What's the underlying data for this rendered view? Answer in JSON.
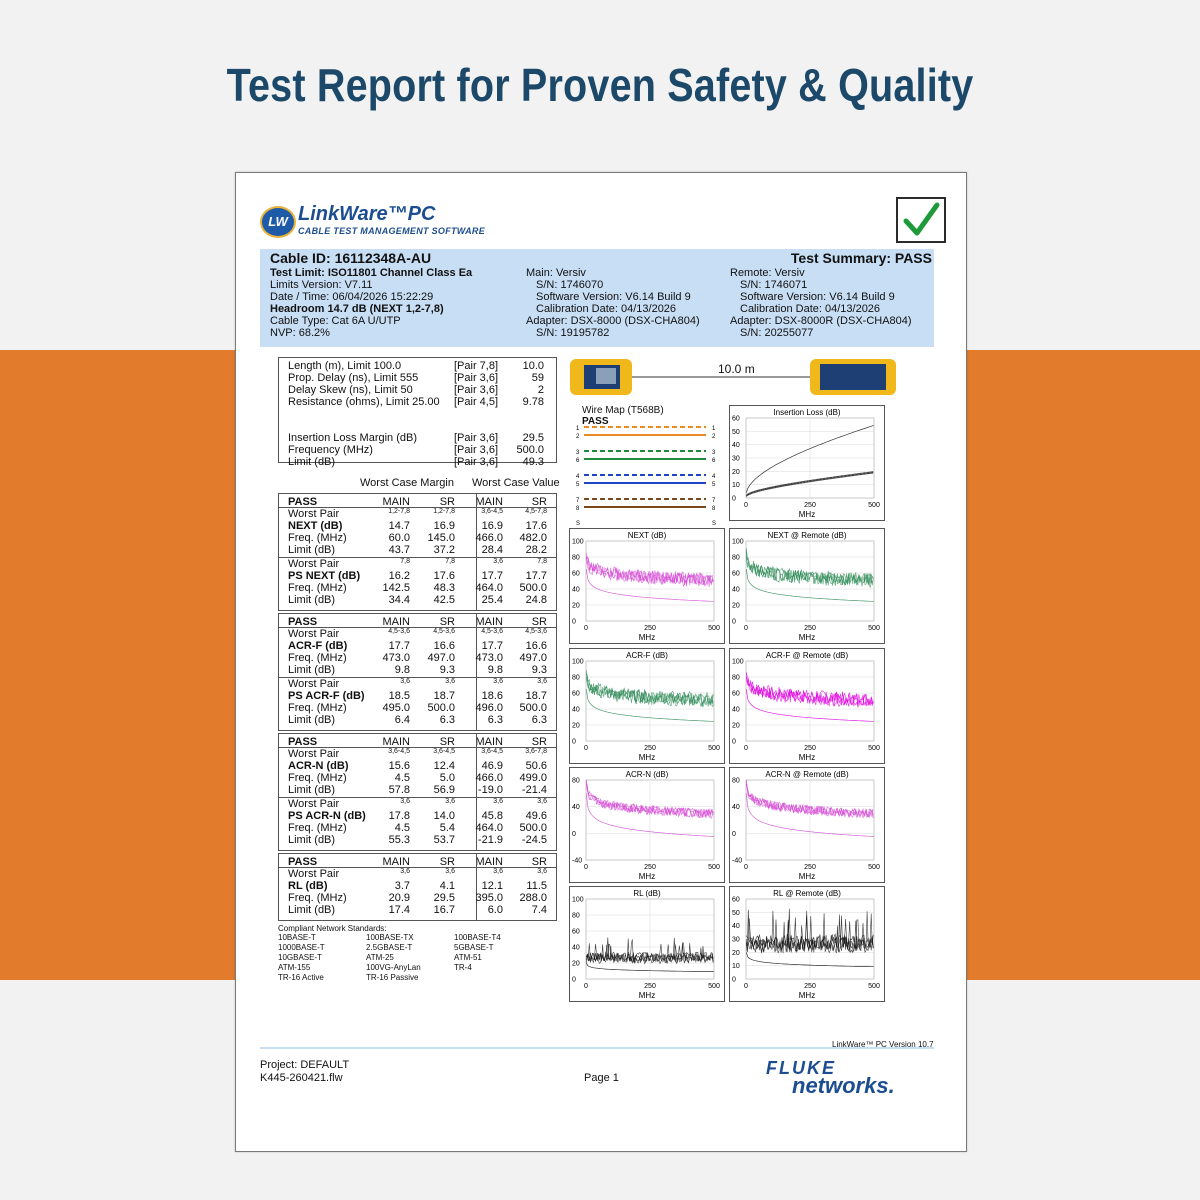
{
  "headline": "Test Report for Proven Safety & Quality",
  "logo": {
    "title": "LinkWare™PC",
    "subtitle": "CABLE TEST MANAGEMENT SOFTWARE",
    "badge": "LW"
  },
  "header": {
    "cable_id": "Cable ID: 16112348A-AU",
    "summary": "Test Summary: PASS",
    "left": [
      "Test Limit: ISO11801 Channel Class Ea",
      "Limits Version: V7.11",
      "Date / Time: 06/04/2026  15:22:29",
      "Headroom 14.7 dB (NEXT 1,2-7,8)",
      "Cable Type: Cat 6A U/UTP",
      "NVP: 68.2%"
    ],
    "mid": [
      "Main: Versiv",
      "S/N: 1746070",
      "Software Version: V6.14 Build 9",
      "Calibration Date: 04/13/2026",
      "Adapter: DSX-8000 (DSX-CHA804)",
      "S/N: 19195782"
    ],
    "right": [
      "Remote: Versiv",
      "S/N: 1746071",
      "Software Version: V6.14 Build 9",
      "Calibration Date: 04/13/2026",
      "Adapter: DSX-8000R (DSX-CHA804)",
      "S/N: 20255077"
    ]
  },
  "metrics": [
    [
      "Length (m), Limit 100.0",
      "[Pair 7,8]",
      "10.0"
    ],
    [
      "Prop. Delay (ns), Limit 555",
      "[Pair 3,6]",
      "59"
    ],
    [
      "Delay Skew (ns), Limit 50",
      "[Pair 3,6]",
      "2"
    ],
    [
      "Resistance (ohms), Limit 25.00",
      "[Pair 4,5]",
      "9.78"
    ],
    [
      "Insertion Loss Margin (dB)",
      "[Pair 3,6]",
      "29.5"
    ],
    [
      "Frequency (MHz)",
      "[Pair 3,6]",
      "500.0"
    ],
    [
      "Limit (dB)",
      "[Pair 3,6]",
      "49.3"
    ]
  ],
  "col_heads": {
    "margin": "Worst Case Margin",
    "value": "Worst Case Value"
  },
  "tables": [
    {
      "head": [
        "PASS",
        "MAIN",
        "SR",
        "MAIN",
        "SR"
      ],
      "groups": [
        {
          "pairs": [
            "1,2-7,8",
            "1,2-7,8",
            "3,6-4,5",
            "4,5-7,8"
          ],
          "rows": [
            [
              "NEXT (dB)",
              "14.7",
              "16.9",
              "16.9",
              "17.6"
            ],
            [
              "Freq. (MHz)",
              "60.0",
              "145.0",
              "466.0",
              "482.0"
            ],
            [
              "Limit (dB)",
              "43.7",
              "37.2",
              "28.4",
              "28.2"
            ]
          ]
        },
        {
          "pairs": [
            "7,8",
            "7,8",
            "3,6",
            "7,8"
          ],
          "rows": [
            [
              "PS NEXT (dB)",
              "16.2",
              "17.6",
              "17.7",
              "17.7"
            ],
            [
              "Freq. (MHz)",
              "142.5",
              "48.3",
              "464.0",
              "500.0"
            ],
            [
              "Limit (dB)",
              "34.4",
              "42.5",
              "25.4",
              "24.8"
            ]
          ]
        }
      ]
    },
    {
      "head": [
        "PASS",
        "MAIN",
        "SR",
        "MAIN",
        "SR"
      ],
      "groups": [
        {
          "pairs": [
            "4,5-3,6",
            "4,5-3,6",
            "4,5-3,6",
            "4,5-3,6"
          ],
          "rows": [
            [
              "ACR-F (dB)",
              "17.7",
              "16.6",
              "17.7",
              "16.6"
            ],
            [
              "Freq. (MHz)",
              "473.0",
              "497.0",
              "473.0",
              "497.0"
            ],
            [
              "Limit (dB)",
              "9.8",
              "9.3",
              "9.8",
              "9.3"
            ]
          ]
        },
        {
          "pairs": [
            "3,6",
            "3,6",
            "3,6",
            "3,6"
          ],
          "rows": [
            [
              "PS ACR-F (dB)",
              "18.5",
              "18.7",
              "18.6",
              "18.7"
            ],
            [
              "Freq. (MHz)",
              "495.0",
              "500.0",
              "496.0",
              "500.0"
            ],
            [
              "Limit (dB)",
              "6.4",
              "6.3",
              "6.3",
              "6.3"
            ]
          ]
        }
      ]
    },
    {
      "head": [
        "PASS",
        "MAIN",
        "SR",
        "MAIN",
        "SR"
      ],
      "groups": [
        {
          "pairs": [
            "3,6-4,5",
            "3,6-4,5",
            "3,6-4,5",
            "3,6-7,8"
          ],
          "rows": [
            [
              "ACR-N (dB)",
              "15.6",
              "12.4",
              "46.9",
              "50.6"
            ],
            [
              "Freq. (MHz)",
              "4.5",
              "5.0",
              "466.0",
              "499.0"
            ],
            [
              "Limit (dB)",
              "57.8",
              "56.9",
              "-19.0",
              "-21.4"
            ]
          ]
        },
        {
          "pairs": [
            "3,6",
            "3,6",
            "3,6",
            "3,6"
          ],
          "rows": [
            [
              "PS ACR-N (dB)",
              "17.8",
              "14.0",
              "45.8",
              "49.6"
            ],
            [
              "Freq. (MHz)",
              "4.5",
              "5.4",
              "464.0",
              "500.0"
            ],
            [
              "Limit (dB)",
              "55.3",
              "53.7",
              "-21.9",
              "-24.5"
            ]
          ]
        }
      ]
    },
    {
      "head": [
        "PASS",
        "MAIN",
        "SR",
        "MAIN",
        "SR"
      ],
      "groups": [
        {
          "pairs": [
            "3,6",
            "3,6",
            "3,6",
            "3,6"
          ],
          "rows": [
            [
              "RL (dB)",
              "3.7",
              "4.1",
              "12.1",
              "11.5"
            ],
            [
              "Freq. (MHz)",
              "20.9",
              "29.5",
              "395.0",
              "288.0"
            ],
            [
              "Limit (dB)",
              "17.4",
              "16.7",
              "6.0",
              "7.4"
            ]
          ]
        }
      ]
    }
  ],
  "standards_title": "Compliant Network Standards:",
  "standards": [
    "10BASE-T",
    "100BASE-TX",
    "100BASE-T4",
    "1000BASE-T",
    "2.5GBASE-T",
    "5GBASE-T",
    "10GBASE-T",
    "ATM-25",
    "ATM-51",
    "ATM-155",
    "100VG-AnyLan",
    "TR-4",
    "TR-16 Active",
    "TR-16 Passive"
  ],
  "link": {
    "length": "10.0 m"
  },
  "wiremap": {
    "title": "Wire Map (T568B)",
    "result": "PASS",
    "pins": [
      "1",
      "2",
      "3",
      "6",
      "4",
      "5",
      "7",
      "8"
    ],
    "shield": "S",
    "colors": [
      "#e98a22",
      "#e98a22",
      "#1f8a3c",
      "#1f8a3c",
      "#1f44c8",
      "#1f44c8",
      "#7a4a1a",
      "#7a4a1a"
    ]
  },
  "chart_data": [
    {
      "type": "line",
      "title": "Insertion Loss (dB)",
      "xlabel": "MHz",
      "xlim": [
        0,
        500
      ],
      "ylim": [
        0,
        60
      ],
      "yticks": [
        0,
        10,
        20,
        30,
        40,
        50,
        60
      ],
      "xticks": [
        0,
        250,
        500
      ],
      "color": "#111111"
    },
    {
      "type": "line",
      "title": "NEXT (dB)",
      "xlabel": "MHz",
      "xlim": [
        0,
        500
      ],
      "ylim": [
        0,
        100
      ],
      "yticks": [
        0,
        20,
        40,
        60,
        80,
        100
      ],
      "xticks": [
        0,
        250,
        500
      ],
      "color": "#d44ad4"
    },
    {
      "type": "line",
      "title": "NEXT @ Remote (dB)",
      "xlabel": "MHz",
      "xlim": [
        0,
        500
      ],
      "ylim": [
        0,
        100
      ],
      "yticks": [
        0,
        20,
        40,
        60,
        80,
        100
      ],
      "xticks": [
        0,
        250,
        500
      ],
      "color": "#2e8b57"
    },
    {
      "type": "line",
      "title": "ACR-F (dB)",
      "xlabel": "MHz",
      "xlim": [
        0,
        500
      ],
      "ylim": [
        0,
        100
      ],
      "yticks": [
        0,
        20,
        40,
        60,
        80,
        100
      ],
      "xticks": [
        0,
        250,
        500
      ],
      "color": "#2e8b57"
    },
    {
      "type": "line",
      "title": "ACR-F @ Remote (dB)",
      "xlabel": "MHz",
      "xlim": [
        0,
        500
      ],
      "ylim": [
        0,
        100
      ],
      "yticks": [
        0,
        20,
        40,
        60,
        80,
        100
      ],
      "xticks": [
        0,
        250,
        500
      ],
      "color": "#e000e0"
    },
    {
      "type": "line",
      "title": "ACR-N (dB)",
      "xlabel": "MHz",
      "xlim": [
        0,
        500
      ],
      "ylim": [
        -40,
        80
      ],
      "yticks": [
        -40,
        0,
        40,
        80
      ],
      "xticks": [
        0,
        250,
        500
      ],
      "color": "#d44ad4"
    },
    {
      "type": "line",
      "title": "ACR-N @ Remote (dB)",
      "xlabel": "MHz",
      "xlim": [
        0,
        500
      ],
      "ylim": [
        -40,
        80
      ],
      "yticks": [
        -40,
        0,
        40,
        80
      ],
      "xticks": [
        0,
        250,
        500
      ],
      "color": "#d44ad4"
    },
    {
      "type": "line",
      "title": "RL (dB)",
      "xlabel": "MHz",
      "xlim": [
        0,
        500
      ],
      "ylim": [
        0,
        100
      ],
      "yticks": [
        0,
        20,
        40,
        60,
        80,
        100
      ],
      "xticks": [
        0,
        250,
        500
      ],
      "color": "#111111"
    },
    {
      "type": "line",
      "title": "RL @ Remote (dB)",
      "xlabel": "MHz",
      "xlim": [
        0,
        500
      ],
      "ylim": [
        0,
        60
      ],
      "yticks": [
        0,
        10,
        20,
        30,
        40,
        50,
        60
      ],
      "xticks": [
        0,
        250,
        500
      ],
      "color": "#111111"
    }
  ],
  "version": "LinkWare™ PC Version 10.7",
  "footer": {
    "project": "Project: DEFAULT",
    "file": "K445-260421.flw",
    "page": "Page 1",
    "brand1": "FLUKE",
    "brand2": "networks."
  }
}
